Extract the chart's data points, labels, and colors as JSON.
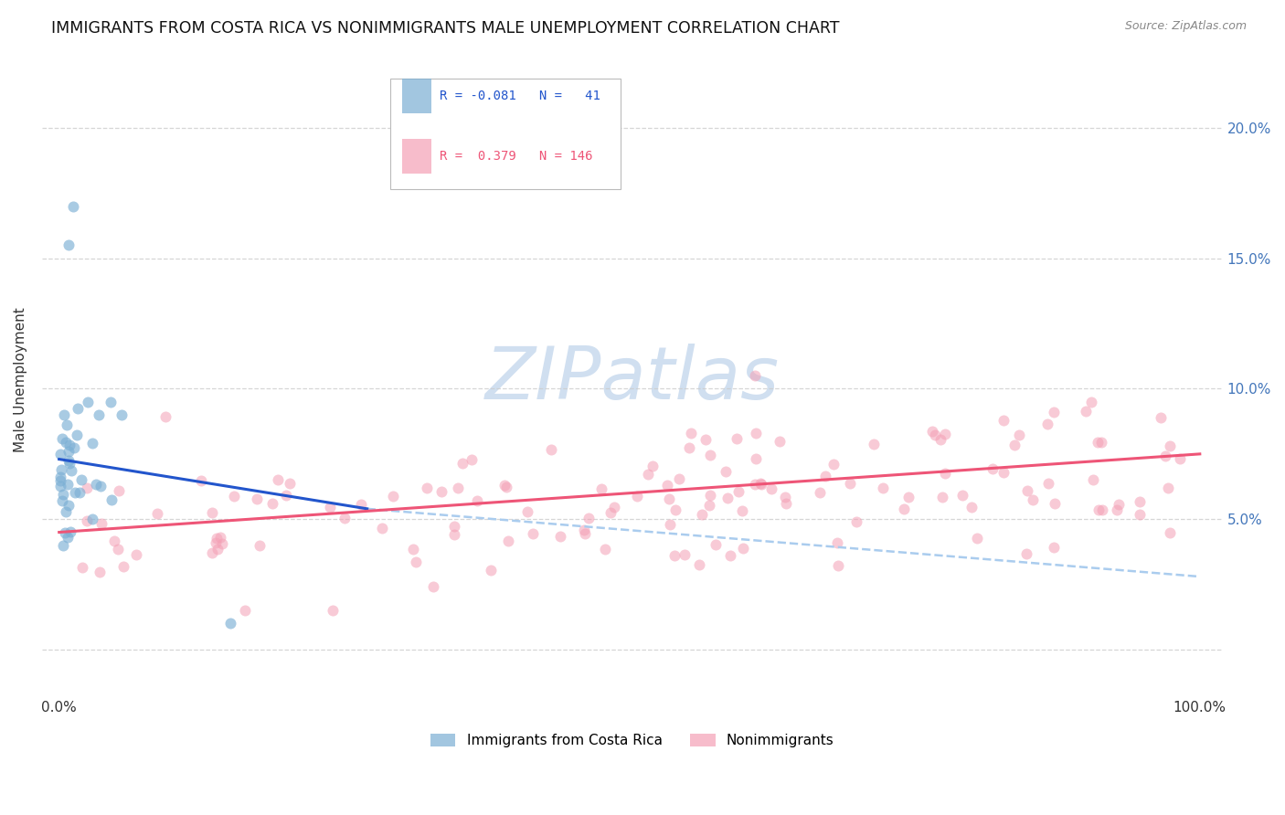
{
  "title": "IMMIGRANTS FROM COSTA RICA VS NONIMMIGRANTS MALE UNEMPLOYMENT CORRELATION CHART",
  "source": "Source: ZipAtlas.com",
  "ylabel": "Male Unemployment",
  "blue_color": "#7BAFD4",
  "pink_color": "#F4A0B5",
  "blue_line_color": "#2255CC",
  "pink_line_color": "#EE5577",
  "blue_dash_color": "#AACCEE",
  "watermark": "ZIPatlas",
  "watermark_color": "#D0DFF0",
  "background_color": "#FFFFFF",
  "grid_color": "#CCCCCC",
  "title_color": "#111111",
  "right_label_color": "#4477BB",
  "source_color": "#888888",
  "legend_r1_val": "R = -0.081",
  "legend_n1_val": "N =  41",
  "legend_r2_val": "R =  0.379",
  "legend_n2_val": "N = 146"
}
